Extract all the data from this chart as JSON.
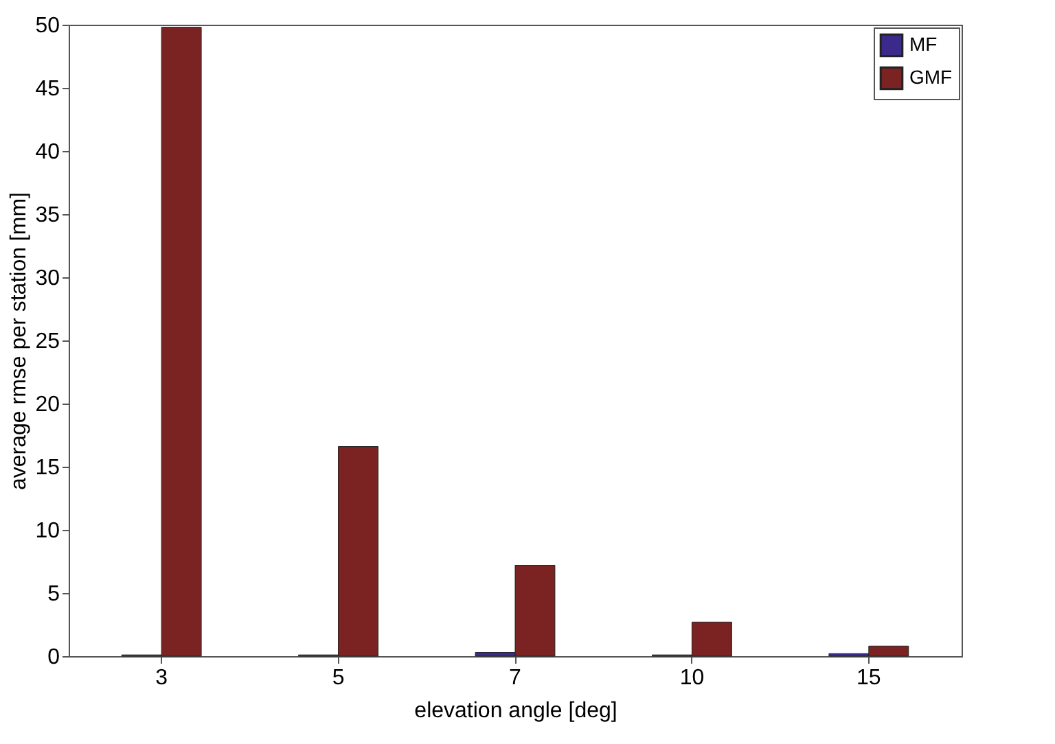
{
  "chart_data": {
    "type": "bar",
    "xlabel": "elevation angle [deg]",
    "ylabel": "average rmse per station [mm]",
    "categories": [
      "3",
      "5",
      "7",
      "10",
      "15"
    ],
    "series": [
      {
        "name": "MF",
        "color": "#3b2a8c",
        "values": [
          0.1,
          0.1,
          0.3,
          0.1,
          0.2
        ]
      },
      {
        "name": "GMF",
        "color": "#7b2222",
        "values": [
          49.8,
          16.6,
          7.2,
          2.7,
          0.8
        ]
      }
    ],
    "ylim": [
      0,
      50
    ],
    "yticks": [
      0,
      5,
      10,
      15,
      20,
      25,
      30,
      35,
      40,
      45,
      50
    ],
    "grid": false,
    "legend": "top right"
  }
}
